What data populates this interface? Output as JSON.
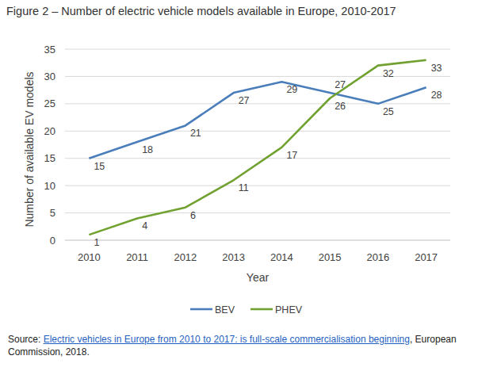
{
  "chart_data": {
    "type": "line",
    "title": "Figure 2 – Number of electric vehicle models available in Europe, 2010-2017",
    "x_label": "Year",
    "y_label": "Number of available EV models",
    "categories": [
      "2010",
      "2011",
      "2012",
      "2013",
      "2014",
      "2015",
      "2016",
      "2017"
    ],
    "series": [
      {
        "name": "BEV",
        "color": "#4a7ebb",
        "values": [
          15,
          18,
          21,
          27,
          29,
          27,
          25,
          28
        ]
      },
      {
        "name": "PHEV",
        "color": "#71a131",
        "values": [
          1,
          4,
          6,
          11,
          17,
          26,
          32,
          33
        ]
      }
    ],
    "ylim": [
      0,
      35
    ],
    "yticks": [
      0,
      5,
      10,
      15,
      20,
      25,
      30,
      35
    ],
    "grid": true,
    "legend": "bottom",
    "data_labels": true,
    "source": {
      "prefix": "Source: ",
      "link": "Electric vehicles in Europe from 2010 to 2017: is full-scale commercialisation beginning",
      "suffix": ", European Commission, 2018."
    }
  }
}
